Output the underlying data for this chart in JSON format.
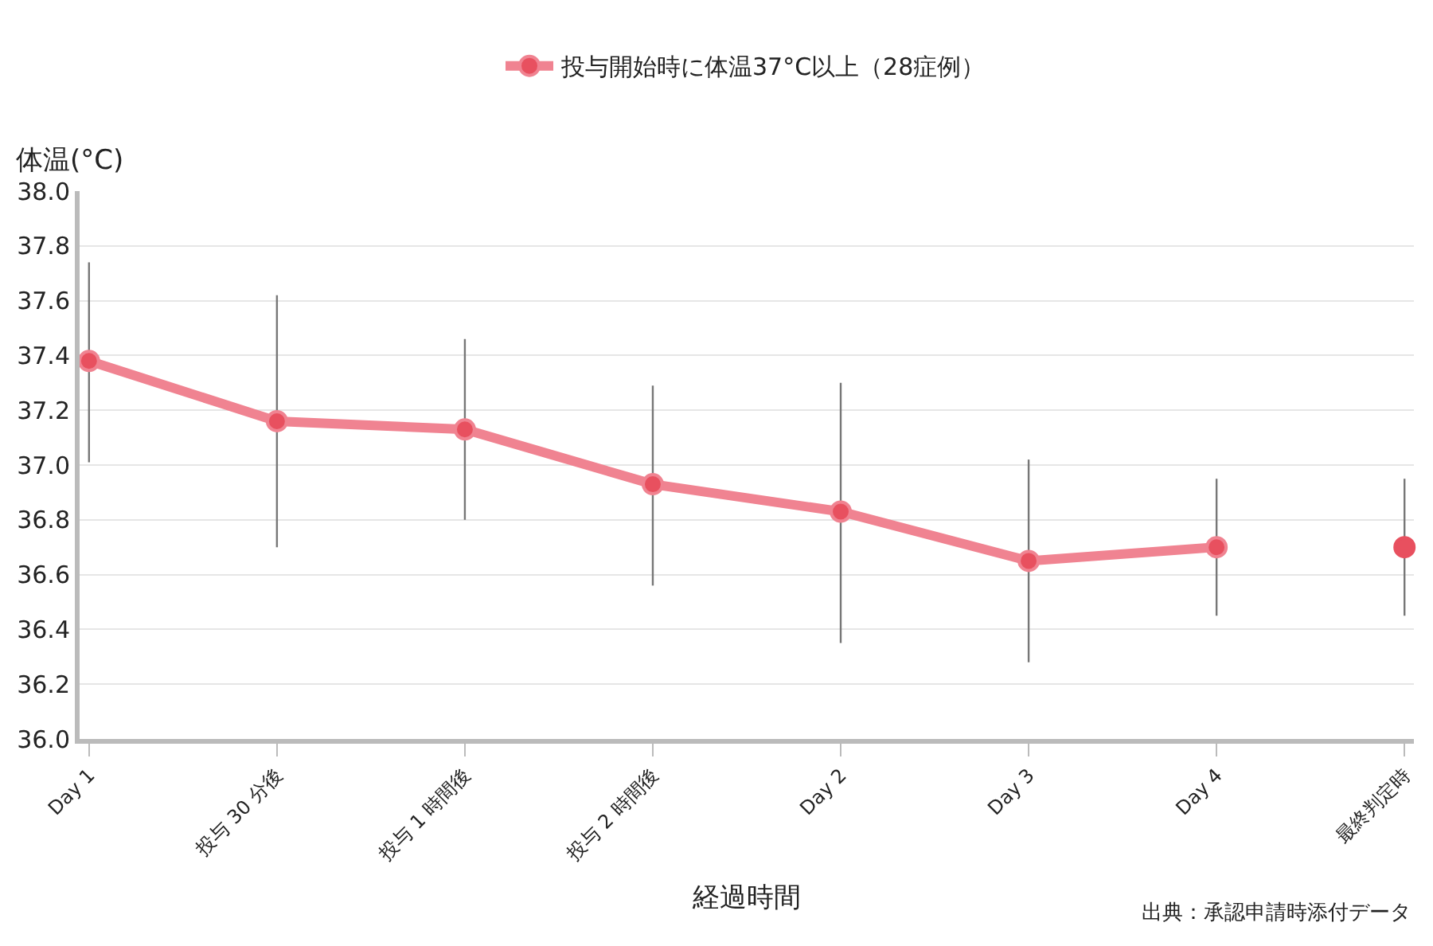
{
  "chart_data": {
    "type": "line",
    "ylabel": "体温(°C)",
    "xlabel": "経過時間",
    "categories": [
      "Day 1",
      "投与 30 分後",
      "投与 1 時間後",
      "投与 2 時間後",
      "Day 2",
      "Day 3",
      "Day 4",
      "最終判定時"
    ],
    "series": [
      {
        "name": "投与開始時に体温37°C以上（28症例）",
        "color": "#f08391",
        "values": [
          37.38,
          37.16,
          37.13,
          36.93,
          36.83,
          36.65,
          36.7,
          null
        ],
        "errors": [
          [
            37.01,
            37.74
          ],
          [
            36.7,
            37.62
          ],
          [
            36.8,
            37.46
          ],
          [
            36.56,
            37.29
          ],
          [
            36.35,
            37.3
          ],
          [
            36.28,
            37.02
          ],
          [
            36.45,
            36.95
          ],
          null
        ]
      },
      {
        "type": "scatter",
        "color": "#e8505f",
        "values": [
          null,
          null,
          null,
          null,
          null,
          null,
          null,
          36.7
        ],
        "errors": [
          null,
          null,
          null,
          null,
          null,
          null,
          null,
          [
            36.45,
            36.95
          ]
        ]
      }
    ],
    "ylim": [
      36.0,
      38.0
    ],
    "yticks": [
      {
        "value": 36.0,
        "label": "36.0"
      },
      {
        "value": 36.2,
        "label": "36.2"
      },
      {
        "value": 36.4,
        "label": "36.4"
      },
      {
        "value": 36.6,
        "label": "36.6"
      },
      {
        "value": 36.8,
        "label": "36.8"
      },
      {
        "value": 37.0,
        "label": "37.0"
      },
      {
        "value": 37.2,
        "label": "37.2"
      },
      {
        "value": 37.4,
        "label": "37.4"
      },
      {
        "value": 37.6,
        "label": "37.6"
      },
      {
        "value": 37.8,
        "label": "37.8"
      },
      {
        "value": 38.0,
        "label": "38.0"
      }
    ],
    "grid": "y",
    "legend": "top",
    "marker": "circle",
    "line_style": "solid",
    "annotations": [
      "出典：承認申請時添付データ"
    ]
  }
}
